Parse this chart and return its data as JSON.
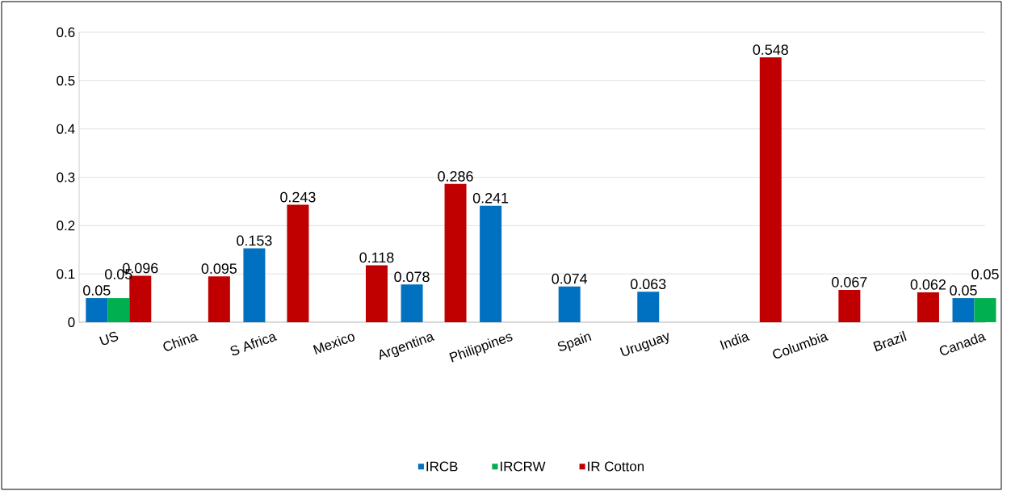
{
  "chart_data": {
    "type": "bar",
    "categories": [
      "US",
      "China",
      "S Africa",
      "Mexico",
      "Argentina",
      "Philippines",
      "Spain",
      "Uruguay",
      "India",
      "Columbia",
      "Brazil",
      "Canada"
    ],
    "series": [
      {
        "name": "IRCB",
        "color": "#0070c0",
        "values": [
          0.05,
          null,
          0.153,
          null,
          0.078,
          0.241,
          0.074,
          0.063,
          null,
          null,
          null,
          0.05
        ]
      },
      {
        "name": "IRCRW",
        "color": "#00b050",
        "values": [
          0.05,
          null,
          null,
          null,
          null,
          null,
          null,
          null,
          null,
          null,
          null,
          0.05
        ]
      },
      {
        "name": "IR Cotton",
        "color": "#c00000",
        "values": [
          0.096,
          0.095,
          0.243,
          0.118,
          0.286,
          null,
          null,
          null,
          0.548,
          0.067,
          0.062,
          null
        ]
      }
    ],
    "ylim": [
      0,
      0.6
    ],
    "yticks": [
      0,
      0.1,
      0.2,
      0.3,
      0.4,
      0.5,
      0.6
    ],
    "grid": "y",
    "legend": "bottom",
    "data_labels": true
  }
}
